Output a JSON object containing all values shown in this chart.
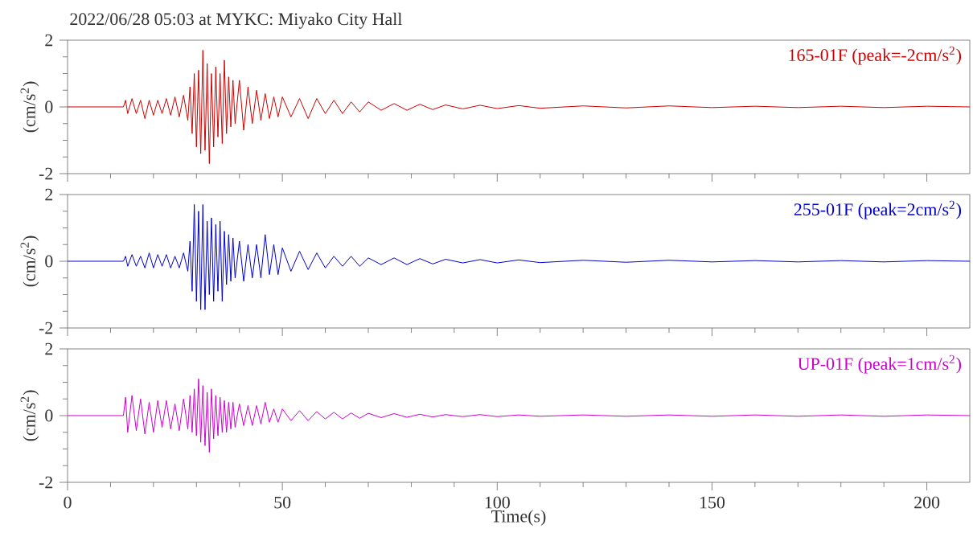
{
  "chart_data": [
    {
      "type": "line",
      "title": "2022/06/28 05:03 at MYKC: Miyako City Hall",
      "ylabel": "(cm/s$^{2}$)",
      "xlim": [
        0,
        210
      ],
      "ylim": [
        -2,
        2
      ],
      "tick_labels": "y",
      "xticks": [
        0,
        {
          "value": 10,
          "label": null
        },
        {
          "value": 20,
          "label": null
        },
        {
          "value": 30,
          "label": null
        },
        {
          "value": 40,
          "label": null
        },
        50,
        {
          "value": 60,
          "label": null
        },
        {
          "value": 70,
          "label": null
        },
        {
          "value": 80,
          "label": null
        },
        {
          "value": 90,
          "label": null
        },
        100,
        {
          "value": 110,
          "label": null
        },
        {
          "value": 120,
          "label": null
        },
        {
          "value": 130,
          "label": null
        },
        {
          "value": 140,
          "label": null
        },
        150,
        {
          "value": 160,
          "label": null
        },
        {
          "value": 170,
          "label": null
        },
        {
          "value": 180,
          "label": null
        },
        {
          "value": 190,
          "label": null
        },
        200
      ],
      "yticks": [
        -2,
        {
          "value": -1.5,
          "label": null
        },
        {
          "value": -1,
          "label": null
        },
        {
          "value": -0.5,
          "label": null
        },
        0,
        {
          "value": 0.5,
          "label": null
        },
        {
          "value": 1,
          "label": null
        },
        {
          "value": 1.5,
          "label": null
        },
        2
      ],
      "x": [
        0,
        13,
        13.5,
        14,
        15,
        16,
        17,
        18,
        19,
        20,
        21,
        22,
        23,
        24,
        25,
        26,
        27,
        28,
        28.5,
        29,
        29.5,
        30,
        30.5,
        31,
        31.5,
        32,
        32.5,
        33,
        33.5,
        34,
        34.5,
        35,
        35.5,
        36,
        36.5,
        37,
        37.5,
        38,
        38.5,
        39,
        40,
        41,
        42,
        43,
        44,
        45,
        46,
        47,
        48,
        49,
        50,
        52,
        54,
        56,
        58,
        60,
        62,
        64,
        66,
        68,
        70,
        73,
        76,
        79,
        82,
        85,
        88,
        92,
        96,
        100,
        105,
        110,
        120,
        130,
        140,
        150,
        160,
        170,
        180,
        190,
        200,
        210
      ],
      "series": [
        {
          "name": "165-01F (peak=-2cm/s$^{2}$)",
          "color": "#cc0000",
          "values": [
            0,
            0,
            0.2,
            -0.2,
            0.25,
            -0.2,
            0.2,
            -0.35,
            0.2,
            -0.25,
            0.2,
            -0.2,
            0.25,
            -0.25,
            0.3,
            -0.3,
            0.35,
            -0.4,
            0.6,
            -0.8,
            1.0,
            -1.2,
            1.1,
            -1.4,
            1.7,
            -1.3,
            1.3,
            -1.7,
            1.0,
            -1.2,
            1.2,
            -0.9,
            1.0,
            -1.1,
            1.4,
            -0.8,
            0.9,
            -0.6,
            0.8,
            -0.5,
            0.8,
            -0.7,
            0.6,
            -0.5,
            0.5,
            -0.4,
            0.4,
            -0.35,
            0.3,
            -0.3,
            0.3,
            -0.3,
            0.25,
            -0.35,
            0.25,
            -0.2,
            0.2,
            -0.2,
            0.15,
            -0.15,
            0.15,
            -0.1,
            0.1,
            -0.1,
            0.08,
            -0.08,
            0.06,
            -0.06,
            0.05,
            -0.05,
            0.04,
            -0.04,
            0.03,
            -0.03,
            0.03,
            -0.02,
            0.02,
            -0.02,
            0.02,
            -0.02,
            0.02,
            0
          ]
        }
      ]
    },
    {
      "type": "line",
      "ylabel": "(cm/s$^{2}$)",
      "xlim": [
        0,
        210
      ],
      "ylim": [
        -2,
        2
      ],
      "tick_labels": "y",
      "xticks": [
        0,
        {
          "value": 10,
          "label": null
        },
        {
          "value": 20,
          "label": null
        },
        {
          "value": 30,
          "label": null
        },
        {
          "value": 40,
          "label": null
        },
        50,
        {
          "value": 60,
          "label": null
        },
        {
          "value": 70,
          "label": null
        },
        {
          "value": 80,
          "label": null
        },
        {
          "value": 90,
          "label": null
        },
        100,
        {
          "value": 110,
          "label": null
        },
        {
          "value": 120,
          "label": null
        },
        {
          "value": 130,
          "label": null
        },
        {
          "value": 140,
          "label": null
        },
        150,
        {
          "value": 160,
          "label": null
        },
        {
          "value": 170,
          "label": null
        },
        {
          "value": 180,
          "label": null
        },
        {
          "value": 190,
          "label": null
        },
        200
      ],
      "yticks": [
        -2,
        {
          "value": -1.5,
          "label": null
        },
        {
          "value": -1,
          "label": null
        },
        {
          "value": -0.5,
          "label": null
        },
        0,
        {
          "value": 0.5,
          "label": null
        },
        {
          "value": 1,
          "label": null
        },
        {
          "value": 1.5,
          "label": null
        },
        2
      ],
      "x": [
        0,
        13,
        13.5,
        14,
        15,
        16,
        17,
        18,
        19,
        20,
        21,
        22,
        23,
        24,
        25,
        26,
        27,
        28,
        28.5,
        29,
        29.5,
        30,
        30.5,
        31,
        31.5,
        32,
        32.5,
        33,
        33.5,
        34,
        34.5,
        35,
        35.5,
        36,
        36.5,
        37,
        37.5,
        38,
        38.5,
        39,
        40,
        41,
        42,
        43,
        44,
        45,
        46,
        47,
        48,
        49,
        50,
        52,
        54,
        56,
        58,
        60,
        62,
        64,
        66,
        68,
        70,
        73,
        76,
        79,
        82,
        85,
        88,
        92,
        96,
        100,
        105,
        110,
        120,
        130,
        140,
        150,
        160,
        170,
        180,
        190,
        200,
        210
      ],
      "series": [
        {
          "name": "255-01F (peak=2cm/s$^{2}$)",
          "color": "#0000cc",
          "values": [
            0,
            0,
            0.15,
            -0.15,
            0.2,
            -0.15,
            0.15,
            -0.2,
            0.25,
            -0.2,
            0.2,
            -0.15,
            0.2,
            -0.2,
            0.15,
            -0.2,
            0.25,
            -0.3,
            0.6,
            -0.9,
            1.7,
            -1.2,
            1.5,
            -1.45,
            1.7,
            -1.45,
            1.2,
            -1.0,
            1.3,
            -1.2,
            1.1,
            -0.9,
            1.2,
            -1.2,
            0.9,
            -0.7,
            0.8,
            -0.6,
            0.7,
            -0.5,
            0.6,
            -0.6,
            0.5,
            -0.5,
            0.5,
            -0.5,
            0.8,
            -0.4,
            0.5,
            -0.4,
            0.4,
            -0.3,
            0.3,
            -0.25,
            0.25,
            -0.2,
            0.15,
            -0.15,
            0.15,
            -0.15,
            0.1,
            -0.1,
            0.1,
            -0.1,
            0.08,
            -0.08,
            0.06,
            -0.05,
            0.05,
            -0.05,
            0.04,
            -0.04,
            0.03,
            -0.03,
            0.03,
            -0.02,
            0.02,
            -0.02,
            0.02,
            -0.02,
            0.02,
            0
          ]
        }
      ]
    },
    {
      "type": "line",
      "ylabel": "(cm/s$^{2}$)",
      "xlabel": "Time(s)",
      "xlim": [
        0,
        210
      ],
      "ylim": [
        -2,
        2
      ],
      "xticks": [
        0,
        {
          "value": 10,
          "label": null
        },
        {
          "value": 20,
          "label": null
        },
        {
          "value": 30,
          "label": null
        },
        {
          "value": 40,
          "label": null
        },
        50,
        {
          "value": 60,
          "label": null
        },
        {
          "value": 70,
          "label": null
        },
        {
          "value": 80,
          "label": null
        },
        {
          "value": 90,
          "label": null
        },
        100,
        {
          "value": 110,
          "label": null
        },
        {
          "value": 120,
          "label": null
        },
        {
          "value": 130,
          "label": null
        },
        {
          "value": 140,
          "label": null
        },
        150,
        {
          "value": 160,
          "label": null
        },
        {
          "value": 170,
          "label": null
        },
        {
          "value": 180,
          "label": null
        },
        {
          "value": 190,
          "label": null
        },
        200
      ],
      "yticks": [
        -2,
        {
          "value": -1.5,
          "label": null
        },
        {
          "value": -1,
          "label": null
        },
        {
          "value": -0.5,
          "label": null
        },
        0,
        {
          "value": 0.5,
          "label": null
        },
        {
          "value": 1,
          "label": null
        },
        {
          "value": 1.5,
          "label": null
        },
        2
      ],
      "x": [
        0,
        13,
        13.5,
        14,
        15,
        16,
        17,
        18,
        19,
        20,
        21,
        22,
        23,
        24,
        25,
        26,
        27,
        28,
        28.5,
        29,
        29.5,
        30,
        30.5,
        31,
        31.5,
        32,
        32.5,
        33,
        33.5,
        34,
        34.5,
        35,
        35.5,
        36,
        36.5,
        37,
        37.5,
        38,
        38.5,
        39,
        40,
        41,
        42,
        43,
        44,
        45,
        46,
        47,
        48,
        49,
        50,
        52,
        54,
        56,
        58,
        60,
        62,
        64,
        66,
        68,
        70,
        73,
        76,
        79,
        82,
        85,
        88,
        92,
        96,
        100,
        105,
        110,
        120,
        130,
        140,
        150,
        160,
        170,
        180,
        190,
        200,
        210
      ],
      "series": [
        {
          "name": "UP-01F (peak=1cm/s$^{2}$)",
          "color": "#cc00cc",
          "values": [
            0,
            0,
            0.55,
            -0.5,
            0.6,
            -0.45,
            0.5,
            -0.55,
            0.4,
            -0.5,
            0.45,
            -0.35,
            0.45,
            -0.4,
            0.35,
            -0.45,
            0.5,
            -0.4,
            0.6,
            -0.5,
            0.8,
            -0.6,
            1.1,
            -0.8,
            0.9,
            -0.9,
            0.7,
            -1.1,
            0.8,
            -0.7,
            0.6,
            -0.6,
            0.55,
            -0.5,
            0.45,
            -0.5,
            0.4,
            -0.4,
            0.4,
            -0.35,
            0.35,
            -0.3,
            0.3,
            -0.3,
            0.3,
            -0.25,
            0.4,
            -0.2,
            0.2,
            -0.2,
            0.2,
            -0.15,
            0.15,
            -0.15,
            0.12,
            -0.1,
            0.1,
            -0.1,
            0.08,
            -0.08,
            0.07,
            -0.06,
            0.06,
            -0.05,
            0.04,
            -0.04,
            0.03,
            -0.03,
            0.03,
            -0.03,
            0.02,
            -0.02,
            0.02,
            -0.02,
            0.02,
            -0.02,
            0.02,
            -0.02,
            0.02,
            -0.02,
            0.02,
            0
          ]
        }
      ]
    }
  ]
}
